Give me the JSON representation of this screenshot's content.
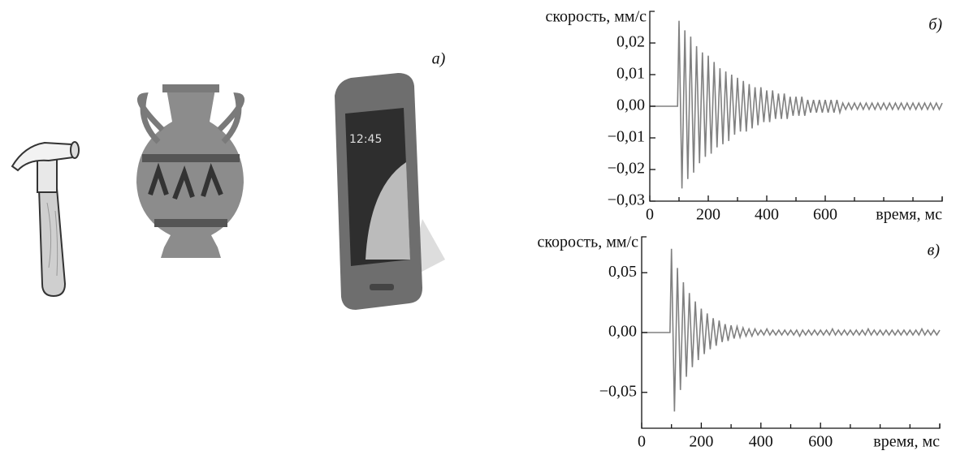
{
  "panel_label": "а)",
  "chart_data": [
    {
      "type": "line",
      "panel": "б)",
      "ylabel": "скорость, мм/с",
      "xlabel": "время, мс",
      "color": "#808080",
      "xlim": [
        0,
        1000
      ],
      "ylim": [
        -0.03,
        0.03
      ],
      "xticks": [
        0,
        200,
        400,
        600
      ],
      "xminor_ticks": [
        100,
        300,
        500,
        700,
        800,
        900,
        1000
      ],
      "yticks": [
        {
          "value": -0.03,
          "label": "−0,03"
        },
        {
          "value": -0.02,
          "label": "−0,02"
        },
        {
          "value": -0.01,
          "label": "−0,01"
        },
        {
          "value": 0,
          "label": "0,00"
        },
        {
          "value": 0.01,
          "label": "0,01"
        },
        {
          "value": 0.02,
          "label": "0,02"
        }
      ],
      "x": [
        0,
        95,
        100,
        110,
        120,
        130,
        140,
        150,
        160,
        170,
        180,
        190,
        200,
        210,
        220,
        230,
        240,
        250,
        260,
        270,
        280,
        290,
        300,
        310,
        320,
        330,
        340,
        350,
        360,
        370,
        380,
        390,
        400,
        410,
        420,
        430,
        440,
        450,
        460,
        470,
        480,
        490,
        500,
        510,
        520,
        530,
        540,
        550,
        560,
        570,
        580,
        590,
        600,
        610,
        620,
        630,
        640,
        650,
        660,
        670,
        680,
        690,
        700,
        710,
        720,
        730,
        740,
        750,
        760,
        770,
        780,
        790,
        800,
        810,
        820,
        830,
        840,
        850,
        860,
        870,
        880,
        890,
        900,
        910,
        920,
        930,
        940,
        950,
        960,
        970,
        980,
        990,
        1000
      ],
      "values": [
        0,
        0,
        0.027,
        -0.026,
        0.024,
        -0.023,
        0.022,
        -0.021,
        0.019,
        -0.018,
        0.017,
        -0.016,
        0.016,
        -0.015,
        0.014,
        -0.013,
        0.012,
        -0.012,
        0.011,
        -0.011,
        0.01,
        -0.009,
        0.009,
        -0.008,
        0.008,
        -0.008,
        0.007,
        -0.007,
        0.006,
        -0.006,
        0.006,
        -0.005,
        0.005,
        -0.005,
        0.005,
        -0.004,
        0.004,
        -0.004,
        0.004,
        -0.004,
        0.003,
        -0.003,
        0.003,
        -0.003,
        0.003,
        -0.003,
        0.002,
        -0.002,
        0.002,
        -0.002,
        0.002,
        -0.002,
        0.002,
        -0.002,
        0.002,
        -0.002,
        0.002,
        -0.002,
        0.001,
        -0.001,
        0.001,
        -0.001,
        0.001,
        -0.001,
        0.001,
        -0.001,
        0.001,
        -0.001,
        0.001,
        -0.001,
        0.001,
        -0.001,
        0.001,
        -0.001,
        0.001,
        -0.001,
        0.001,
        -0.001,
        0.001,
        -0.001,
        0.001,
        -0.001,
        0.001,
        -0.001,
        0.001,
        -0.001,
        0.001,
        -0.001,
        0.001,
        -0.001,
        0.001,
        -0.001,
        0.001
      ]
    },
    {
      "type": "line",
      "panel": "в)",
      "ylabel": "скорость, мм/с",
      "xlabel": "время, мс",
      "color": "#808080",
      "xlim": [
        0,
        1000
      ],
      "ylim": [
        -0.08,
        0.08
      ],
      "xticks": [
        0,
        200,
        400,
        600
      ],
      "xminor_ticks": [
        100,
        300,
        500,
        700,
        800,
        900,
        1000
      ],
      "yticks": [
        {
          "value": -0.05,
          "label": "−0,05"
        },
        {
          "value": 0,
          "label": "0,00"
        },
        {
          "value": 0.05,
          "label": "0,05"
        }
      ],
      "x": [
        0,
        95,
        100,
        110,
        120,
        130,
        140,
        150,
        160,
        170,
        180,
        190,
        200,
        210,
        220,
        230,
        240,
        250,
        260,
        270,
        280,
        290,
        300,
        310,
        320,
        330,
        340,
        350,
        360,
        370,
        380,
        390,
        400,
        410,
        420,
        430,
        440,
        450,
        460,
        470,
        480,
        490,
        500,
        510,
        520,
        530,
        540,
        550,
        560,
        570,
        580,
        590,
        600,
        610,
        620,
        630,
        640,
        650,
        660,
        670,
        680,
        690,
        700,
        710,
        720,
        730,
        740,
        750,
        760,
        770,
        780,
        790,
        800,
        810,
        820,
        830,
        840,
        850,
        860,
        870,
        880,
        890,
        900,
        910,
        920,
        930,
        940,
        950,
        960,
        970,
        980,
        990,
        1000
      ],
      "values": [
        0,
        0,
        0.07,
        -0.066,
        0.054,
        -0.048,
        0.042,
        -0.037,
        0.033,
        -0.029,
        0.026,
        -0.023,
        0.02,
        -0.018,
        0.016,
        -0.014,
        0.012,
        -0.011,
        0.01,
        -0.008,
        0.007,
        -0.007,
        0.006,
        -0.005,
        0.005,
        -0.004,
        0.004,
        -0.003,
        0.003,
        -0.003,
        0.003,
        -0.002,
        0.002,
        -0.002,
        0.003,
        -0.002,
        0.002,
        -0.002,
        0.002,
        -0.002,
        0.002,
        -0.002,
        0.002,
        -0.002,
        0.002,
        -0.003,
        0.002,
        -0.002,
        0.002,
        -0.002,
        0.002,
        -0.002,
        0.002,
        -0.002,
        0.002,
        -0.002,
        0.003,
        -0.002,
        0.002,
        -0.002,
        0.002,
        -0.002,
        0.002,
        -0.002,
        0.002,
        -0.002,
        0.002,
        -0.002,
        0.003,
        -0.002,
        0.002,
        -0.002,
        0.002,
        -0.002,
        0.002,
        -0.002,
        0.002,
        -0.002,
        0.002,
        -0.002,
        0.002,
        -0.002,
        0.002,
        -0.002,
        0.002,
        -0.002,
        0.003,
        -0.002,
        0.002,
        -0.002,
        0.002,
        -0.002,
        0.002
      ]
    }
  ]
}
